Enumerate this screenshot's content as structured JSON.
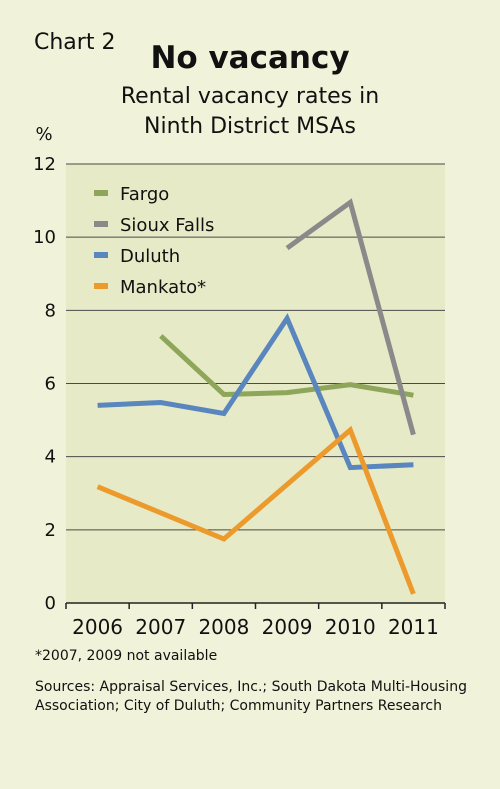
{
  "header": {
    "chart_label": "Chart 2",
    "title": "No vacancy",
    "subtitle_line1": "Rental vacancy rates in",
    "subtitle_line2": "Ninth District MSAs"
  },
  "footer": {
    "note": "*2007, 2009 not available",
    "sources": "Sources: Appraisal Services, Inc.; South Dakota Multi-Housing Association; City of Duluth; Community Partners Research"
  },
  "colors": {
    "background": "#f0f3d9",
    "plot_background": "#e7eac6",
    "gridline": "#4a4a4a",
    "Fargo": "#8da65a",
    "Sioux Falls": "#8a8a8a",
    "Duluth": "#5a86bf",
    "Mankato": "#eb9a2b"
  },
  "chart_data": {
    "type": "line",
    "y_unit_label": "%",
    "ylim": [
      0,
      12
    ],
    "yticks": [
      "0",
      "2",
      "4",
      "6",
      "8",
      "10",
      "12"
    ],
    "grid": true,
    "legend_position": "top-left",
    "categories": [
      "2006",
      "2007",
      "2008",
      "2009",
      "2010",
      "2011"
    ],
    "series": [
      {
        "name": "Fargo",
        "color": "#8da65a",
        "values": [
          null,
          7.3,
          5.7,
          5.75,
          5.97,
          5.68
        ]
      },
      {
        "name": "Sioux Falls",
        "color": "#8a8a8a",
        "values": [
          null,
          null,
          null,
          9.7,
          10.95,
          4.6
        ]
      },
      {
        "name": "Duluth",
        "color": "#5a86bf",
        "values": [
          5.4,
          5.48,
          5.18,
          7.78,
          3.7,
          3.78
        ]
      },
      {
        "name": "Mankato*",
        "color": "#eb9a2b",
        "values": [
          3.18,
          null,
          1.75,
          null,
          4.73,
          0.25
        ]
      }
    ]
  }
}
